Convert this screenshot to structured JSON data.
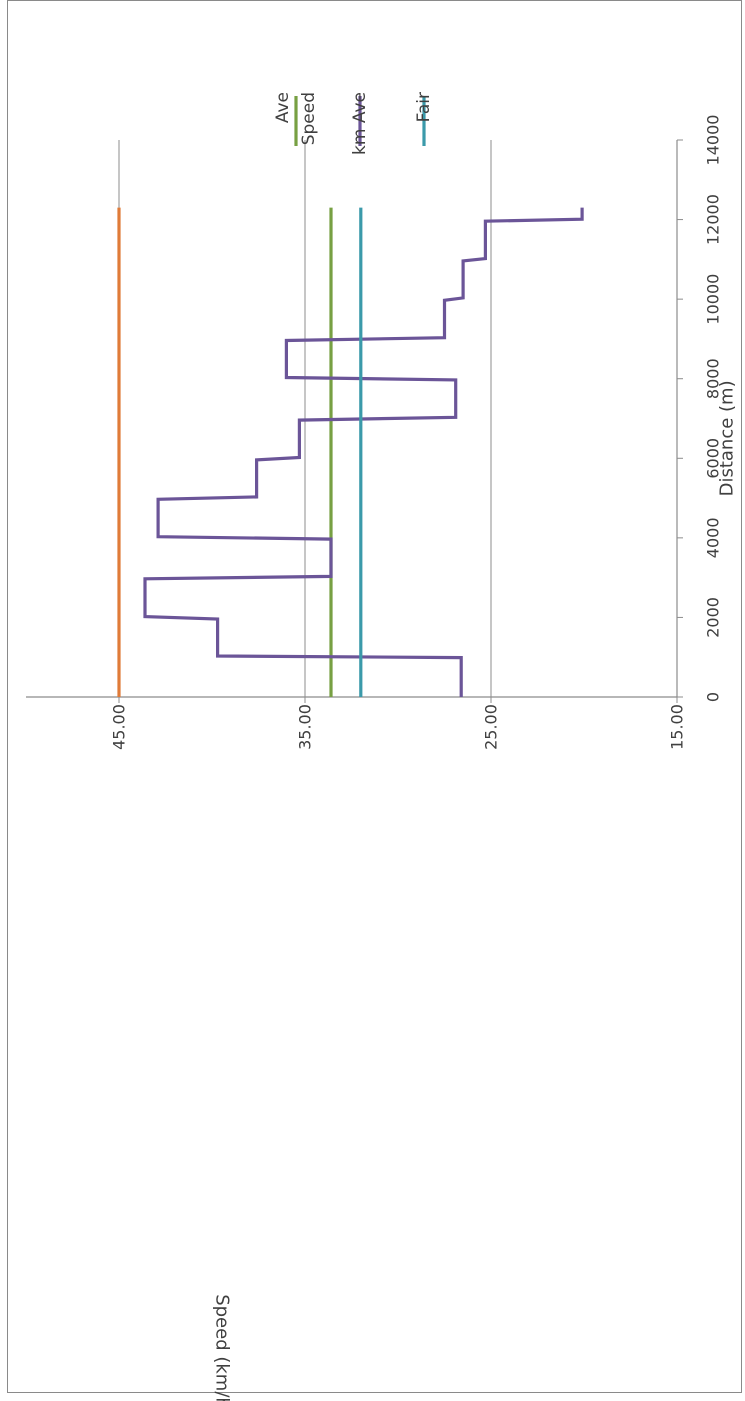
{
  "chart_data": {
    "type": "line",
    "orientation": "rotated-90-clockwise",
    "xlabel": "Distance (m)",
    "ylabel": "Speed (km/h)",
    "xlim": [
      0,
      14000
    ],
    "ylim": [
      15,
      50
    ],
    "x_ticks": [
      0,
      2000,
      4000,
      6000,
      8000,
      10000,
      12000,
      14000
    ],
    "x_tick_labels": [
      "0",
      "2000",
      "4000",
      "6000",
      "8000",
      "10000",
      "12000",
      "14000"
    ],
    "y_ticks": [
      15,
      25,
      35,
      45
    ],
    "y_tick_labels": [
      "15.00",
      "25.00",
      "35.00",
      "45.00"
    ],
    "grid": "horizontal",
    "legend_position": "top-right",
    "series": [
      {
        "name": "",
        "color": "#e07b39",
        "points": [
          [
            0,
            45.0
          ],
          [
            12300,
            45.0
          ]
        ]
      },
      {
        "name": "Ave Speed",
        "legend_lines": [
          "Ave",
          "Speed"
        ],
        "color": "#77a043",
        "points": [
          [
            0,
            33.6
          ],
          [
            12300,
            33.6
          ]
        ]
      },
      {
        "name": "km Ave",
        "legend_lines": [
          "km Ave"
        ],
        "color": "#6b5598",
        "points": [
          [
            0,
            26.6
          ],
          [
            990,
            26.6
          ],
          [
            1030,
            39.7
          ],
          [
            1960,
            39.7
          ],
          [
            2020,
            43.6
          ],
          [
            2970,
            43.6
          ],
          [
            3030,
            33.6
          ],
          [
            3970,
            33.6
          ],
          [
            4030,
            42.9
          ],
          [
            4970,
            42.9
          ],
          [
            5030,
            37.6
          ],
          [
            5960,
            37.6
          ],
          [
            6020,
            35.3
          ],
          [
            6960,
            35.3
          ],
          [
            7030,
            26.9
          ],
          [
            7970,
            26.9
          ],
          [
            8030,
            36.0
          ],
          [
            8960,
            36.0
          ],
          [
            9030,
            27.5
          ],
          [
            9970,
            27.5
          ],
          [
            10030,
            26.5
          ],
          [
            10960,
            26.5
          ],
          [
            11020,
            25.3
          ],
          [
            11960,
            25.3
          ],
          [
            12010,
            20.1
          ],
          [
            12300,
            20.1
          ]
        ]
      },
      {
        "name": "Fair",
        "legend_lines": [
          "Fair"
        ],
        "color": "#3b9aaa",
        "points": [
          [
            0,
            32.0
          ],
          [
            12300,
            32.0
          ]
        ]
      }
    ]
  }
}
